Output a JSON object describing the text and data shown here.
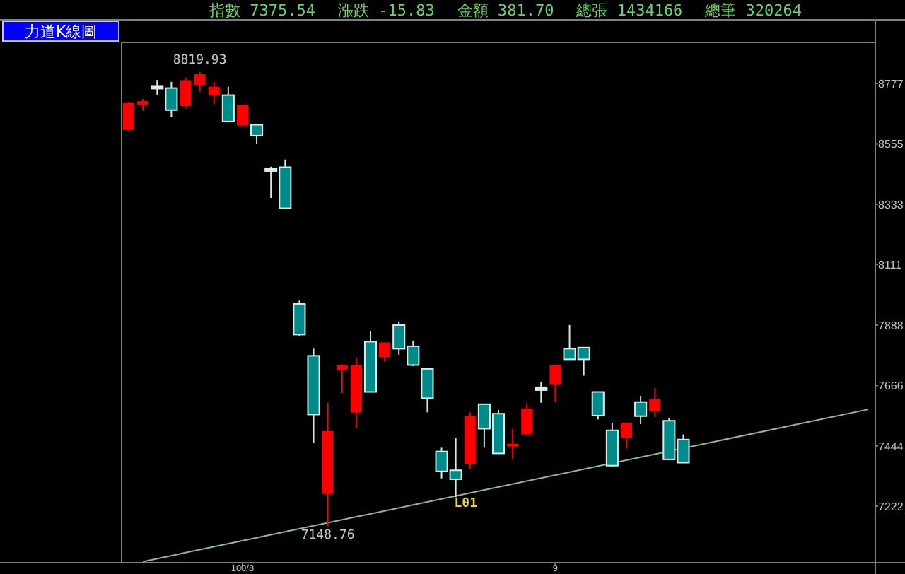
{
  "chart_data": {
    "type": "candlestick",
    "title": "力道K線圖",
    "categories": [
      null,
      null,
      null,
      null,
      null,
      null,
      null,
      null,
      "100/8",
      null,
      null,
      null,
      null,
      null,
      null,
      null,
      null,
      null,
      null,
      null,
      null,
      null,
      null,
      null,
      null,
      null,
      null,
      null,
      null,
      null,
      "9",
      null,
      null,
      null,
      null,
      null,
      null,
      null,
      null,
      null,
      null,
      null,
      null,
      null,
      null,
      null,
      null,
      null,
      null,
      null,
      null,
      null,
      null
    ],
    "ohlc": [
      [
        8606,
        8710,
        8600,
        8705
      ],
      [
        8698,
        8720,
        8677,
        8712
      ],
      [
        8763,
        8790,
        8735,
        8763
      ],
      [
        8760,
        8783,
        8653,
        8679
      ],
      [
        8694,
        8798,
        8685,
        8789
      ],
      [
        8771,
        8819.93,
        8747,
        8811
      ],
      [
        8734,
        8783,
        8700,
        8765
      ],
      [
        8734,
        8765,
        8635,
        8637
      ],
      [
        8623,
        8700,
        8620,
        8698
      ],
      [
        8625,
        8625,
        8556,
        8585
      ],
      [
        8460,
        8471,
        8356,
        8460
      ],
      [
        8469,
        8497,
        8318,
        8318
      ],
      [
        7966,
        7978,
        7847,
        7853
      ],
      [
        7775,
        7801,
        7455,
        7559
      ],
      [
        7267,
        7602,
        7148.76,
        7498
      ],
      [
        7723,
        7742,
        7638,
        7741
      ],
      [
        7567,
        7768,
        7508,
        7741
      ],
      [
        7827,
        7867,
        7642,
        7642
      ],
      [
        7770,
        7824,
        7753,
        7824
      ],
      [
        7888,
        7902,
        7779,
        7801
      ],
      [
        7810,
        7831,
        7737,
        7741
      ],
      [
        7727,
        7727,
        7567,
        7619
      ],
      [
        7423,
        7437,
        7324,
        7350
      ],
      [
        7354,
        7472,
        7255,
        7321
      ],
      [
        7377,
        7567,
        7359,
        7553
      ],
      [
        7597,
        7597,
        7437,
        7507
      ],
      [
        7562,
        7576,
        7416,
        7416
      ],
      [
        7442,
        7507,
        7394,
        7451
      ],
      [
        7486,
        7600,
        7486,
        7581
      ],
      [
        7654,
        7680,
        7602,
        7654
      ],
      [
        7671,
        7741,
        7605,
        7741
      ],
      [
        7801,
        7888,
        7762,
        7762
      ],
      [
        7805,
        7805,
        7702,
        7762
      ],
      [
        7642,
        7642,
        7541,
        7555
      ],
      [
        7501,
        7529,
        7367,
        7371
      ],
      [
        7472,
        7529,
        7434,
        7529
      ],
      [
        7605,
        7628,
        7524,
        7553
      ],
      [
        7572,
        7657,
        7550,
        7616
      ],
      [
        7536,
        7545,
        7392,
        7394
      ],
      [
        7467,
        7486,
        7382,
        7382
      ],
      null,
      null,
      null,
      null,
      null,
      null,
      null,
      null,
      null,
      null,
      null,
      null,
      null
    ],
    "colors": [
      "#ff0000",
      "#ff0000",
      "#e8e8e8",
      "#008b8b",
      "#ff0000",
      "#ff0000",
      "#ff0000",
      "#008b8b",
      "#ff0000",
      "#008b8b",
      "#e8e8e8",
      "#008b8b",
      "#008b8b",
      "#008b8b",
      "#ff0000",
      "#ff0000",
      "#ff0000",
      "#008b8b",
      "#ff0000",
      "#008b8b",
      "#008b8b",
      "#008b8b",
      "#008b8b",
      "#008b8b",
      "#ff0000",
      "#008b8b",
      "#008b8b",
      "#ff0000",
      "#ff0000",
      "#e8e8e8",
      "#ff0000",
      "#008b8b",
      "#008b8b",
      "#008b8b",
      "#008b8b",
      "#ff0000",
      "#008b8b",
      "#ff0000",
      "#008b8b",
      "#008b8b",
      null,
      null,
      null,
      null,
      null,
      null,
      null,
      null,
      null,
      null,
      null,
      null,
      null
    ],
    "series": [
      {
        "type": "line",
        "values": [
          null,
          7018,
          null,
          null,
          null,
          null,
          null,
          null,
          null,
          null,
          null,
          null,
          null,
          null,
          null,
          null,
          null,
          null,
          null,
          null,
          null,
          null,
          null,
          null,
          null,
          null,
          null,
          null,
          null,
          null,
          null,
          null,
          null,
          null,
          null,
          null,
          null,
          null,
          null,
          null,
          null,
          null,
          null,
          null,
          null,
          null,
          null,
          null,
          null,
          null,
          null,
          null,
          7578
        ],
        "color": "#8fbc8f"
      }
    ],
    "ylim": [
      7014,
      8928
    ],
    "yticks": [
      7222,
      7444,
      7666,
      7888,
      8111,
      8333,
      8555,
      8777
    ],
    "annotations": [
      "指數 7375.54",
      "漲跌 -15.83",
      "金額 381.70",
      "總張 1434166",
      "總筆 320264",
      {
        "text": "8819.93",
        "y": 8819.93
      },
      {
        "text": "7148.76",
        "y": 7148.76
      },
      {
        "text": "L01",
        "y": 7266
      }
    ]
  }
}
